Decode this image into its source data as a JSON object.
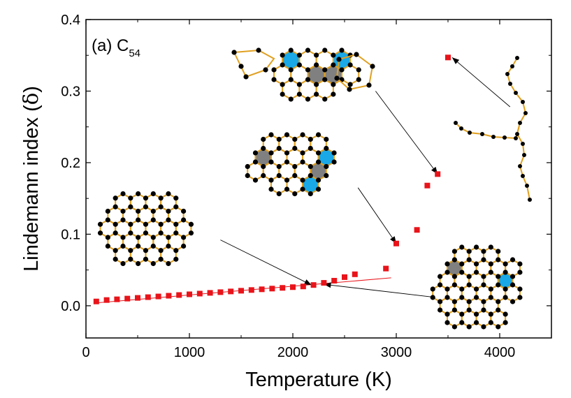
{
  "chart_data": {
    "type": "scatter",
    "title": "",
    "panel_label": "(a) C",
    "panel_label_subscript": "54",
    "xlabel": "Temperature (K)",
    "ylabel_main": "Lindemann index (",
    "ylabel_symbol": "δ",
    "ylabel_close": ")",
    "xlim": [
      0,
      4500
    ],
    "ylim": [
      -0.045,
      0.4
    ],
    "xticks": [
      0,
      1000,
      2000,
      3000,
      4000
    ],
    "xtick_labels": [
      "0",
      "1000",
      "2000",
      "3000",
      "4000"
    ],
    "yticks": [
      0.0,
      0.1,
      0.2,
      0.3,
      0.4
    ],
    "ytick_labels": [
      "0.0",
      "0.1",
      "0.2",
      "0.3",
      "0.4"
    ],
    "grid": false,
    "marker_color": "#e8141a",
    "series": [
      {
        "name": "C54",
        "x": [
          100,
          200,
          300,
          400,
          500,
          600,
          700,
          800,
          900,
          1000,
          1100,
          1200,
          1300,
          1400,
          1500,
          1600,
          1700,
          1800,
          1900,
          2000,
          2100,
          2200,
          2300,
          2400,
          2500,
          2600,
          2900,
          3000,
          3200,
          3300,
          3400,
          3500
        ],
        "y": [
          0.006,
          0.008,
          0.009,
          0.01,
          0.011,
          0.012,
          0.013,
          0.014,
          0.015,
          0.016,
          0.017,
          0.018,
          0.019,
          0.02,
          0.021,
          0.022,
          0.023,
          0.024,
          0.025,
          0.026,
          0.027,
          0.029,
          0.032,
          0.035,
          0.04,
          0.044,
          0.052,
          0.087,
          0.106,
          0.168,
          0.184,
          0.347
        ]
      }
    ],
    "fit_line": {
      "x": [
        100,
        2950
      ],
      "y": [
        0.004,
        0.039
      ]
    },
    "annotation_arrows": [
      {
        "from": [
          1300,
          0.092
        ],
        "to": [
          2180,
          0.029
        ]
      },
      {
        "from": [
          3360,
          0.012
        ],
        "to": [
          2300,
          0.03
        ]
      },
      {
        "from": [
          2630,
          0.165
        ],
        "to": [
          3000,
          0.087
        ]
      },
      {
        "from": [
          2800,
          0.3
        ],
        "to": [
          3400,
          0.184
        ]
      },
      {
        "from": [
          4100,
          0.278
        ],
        "to": [
          3540,
          0.347
        ]
      }
    ],
    "axis_color": "#000000",
    "molecule_bond_color": "#e0a020",
    "molecule_atom_color": "#000000",
    "ring_highlight_blue": "#1aa8e6",
    "ring_highlight_gray": "#808080"
  }
}
